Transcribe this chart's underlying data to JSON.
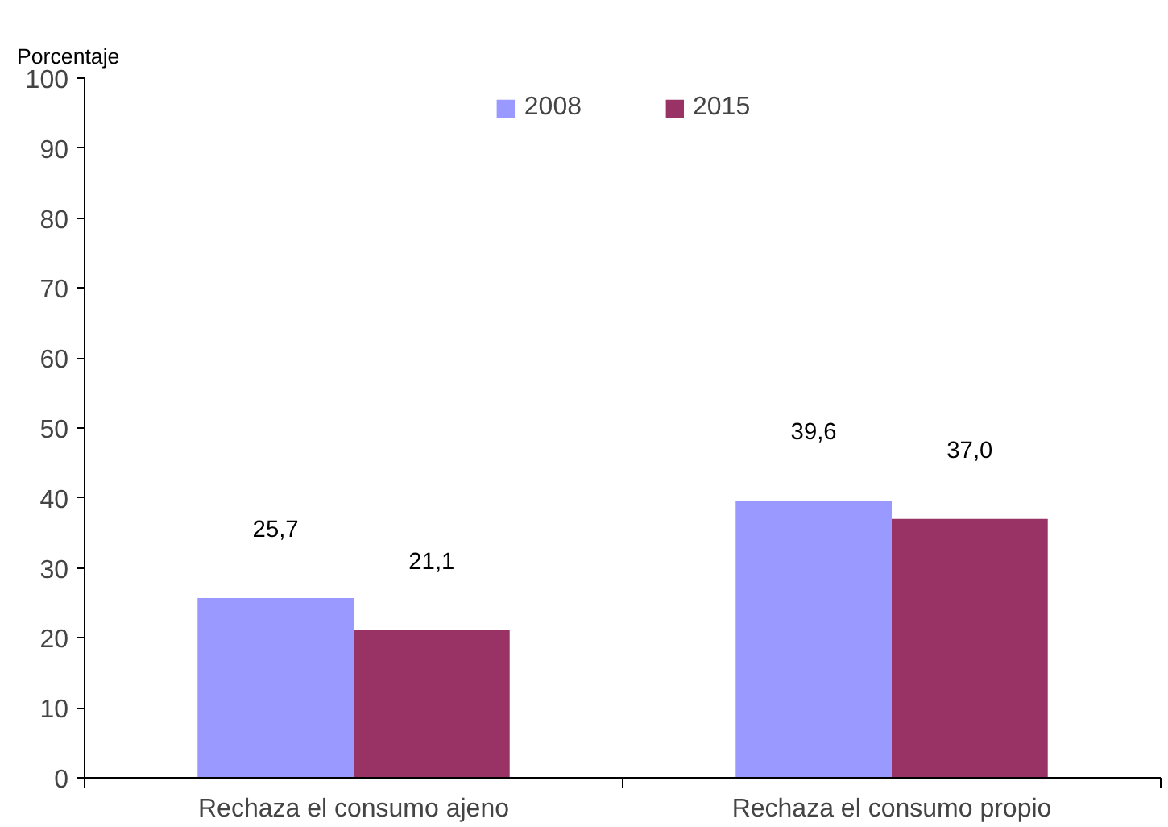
{
  "chart_data": {
    "type": "bar",
    "ylabel": "Porcentaje",
    "categories": [
      "Rechaza el consumo ajeno",
      "Rechaza el consumo propio"
    ],
    "series": [
      {
        "name": "2008",
        "color": "#9999ff",
        "values": [
          25.7,
          39.6
        ],
        "value_labels": [
          "25,7",
          "39,6"
        ]
      },
      {
        "name": "2015",
        "color": "#993366",
        "values": [
          21.1,
          37.0
        ],
        "value_labels": [
          "21,1",
          "37,0"
        ]
      }
    ],
    "ylim": [
      0,
      100
    ],
    "yticks": [
      0,
      10,
      20,
      30,
      40,
      50,
      60,
      70,
      80,
      90,
      100
    ],
    "grid": false,
    "legend": "top"
  }
}
